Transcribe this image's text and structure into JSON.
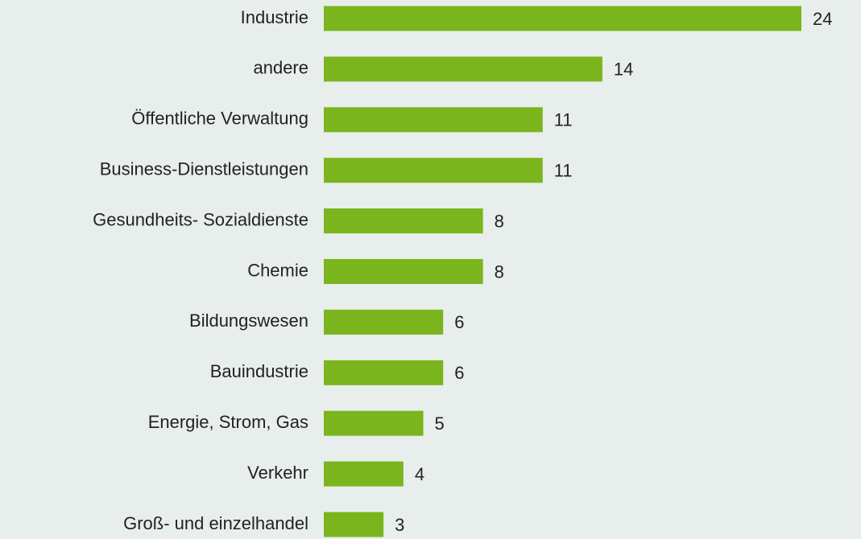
{
  "chart_data": {
    "type": "bar",
    "orientation": "horizontal",
    "categories": [
      "Industrie",
      "andere",
      "Öffentliche Verwaltung",
      "Business-Dienstleistungen",
      "Gesundheits- Sozialdienste",
      "Chemie",
      "Bildungswesen",
      "Bauindustrie",
      "Energie, Strom, Gas",
      "Verkehr",
      "Groß- und einzelhandel"
    ],
    "values": [
      24,
      14,
      11,
      11,
      8,
      8,
      6,
      6,
      5,
      4,
      3
    ],
    "color": "#7ab51d"
  }
}
